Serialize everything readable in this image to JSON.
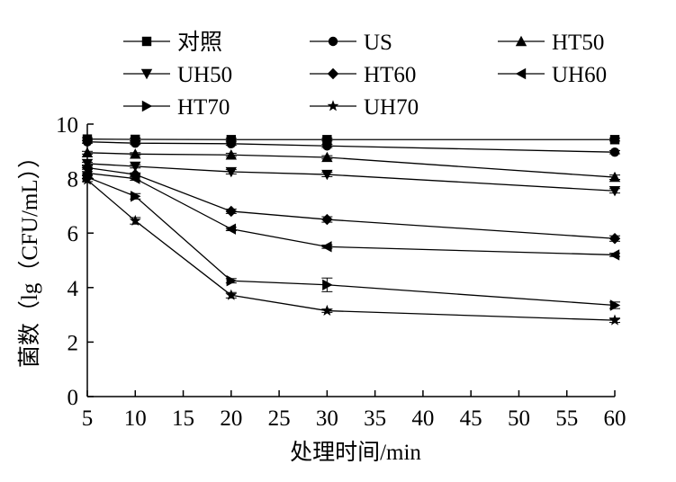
{
  "chart_data": {
    "type": "line",
    "title": "",
    "xlabel": "处理时间/min",
    "ylabel": "菌数（lg（CFU/mL））",
    "xlim": [
      5,
      60
    ],
    "ylim": [
      0,
      10
    ],
    "xticks": [
      5,
      10,
      15,
      20,
      25,
      30,
      35,
      40,
      45,
      50,
      55,
      60
    ],
    "yticks": [
      0,
      2,
      4,
      6,
      8,
      10
    ],
    "x": [
      5,
      10,
      20,
      30,
      60
    ],
    "grid": false,
    "legend_position": "top",
    "error_bars": true,
    "series": [
      {
        "name": "对照",
        "marker": "square",
        "values": [
          9.45,
          9.44,
          9.43,
          9.43,
          9.43
        ],
        "errors": [
          0.05,
          0.05,
          0.05,
          0.05,
          0.05
        ]
      },
      {
        "name": "US",
        "marker": "circle",
        "values": [
          9.35,
          9.3,
          9.28,
          9.2,
          8.97
        ],
        "errors": [
          0.05,
          0.05,
          0.06,
          0.06,
          0.06
        ]
      },
      {
        "name": "HT50",
        "marker": "triangle-up",
        "values": [
          8.95,
          8.9,
          8.87,
          8.78,
          8.05
        ],
        "errors": [
          0.05,
          0.05,
          0.06,
          0.06,
          0.08
        ]
      },
      {
        "name": "UH50",
        "marker": "triangle-down",
        "values": [
          8.55,
          8.45,
          8.25,
          8.15,
          7.55
        ],
        "errors": [
          0.05,
          0.06,
          0.08,
          0.08,
          0.08
        ]
      },
      {
        "name": "HT60",
        "marker": "diamond",
        "values": [
          8.4,
          8.15,
          6.8,
          6.5,
          5.8
        ],
        "errors": [
          0.06,
          0.06,
          0.08,
          0.1,
          0.1
        ]
      },
      {
        "name": "UH60",
        "marker": "triangle-left",
        "values": [
          8.2,
          8.0,
          6.15,
          5.5,
          5.2
        ],
        "errors": [
          0.06,
          0.06,
          0.06,
          0.06,
          0.06
        ]
      },
      {
        "name": "HT70",
        "marker": "triangle-right",
        "values": [
          8.05,
          7.35,
          4.25,
          4.1,
          3.35
        ],
        "errors": [
          0.06,
          0.1,
          0.08,
          0.25,
          0.12
        ]
      },
      {
        "name": "UH70",
        "marker": "star",
        "values": [
          7.95,
          6.45,
          3.72,
          3.15,
          2.8
        ],
        "errors": [
          0.06,
          0.12,
          0.1,
          0.06,
          0.08
        ]
      }
    ],
    "colors": {
      "line": "#000000",
      "axis": "#000000",
      "background": "#ffffff"
    }
  }
}
